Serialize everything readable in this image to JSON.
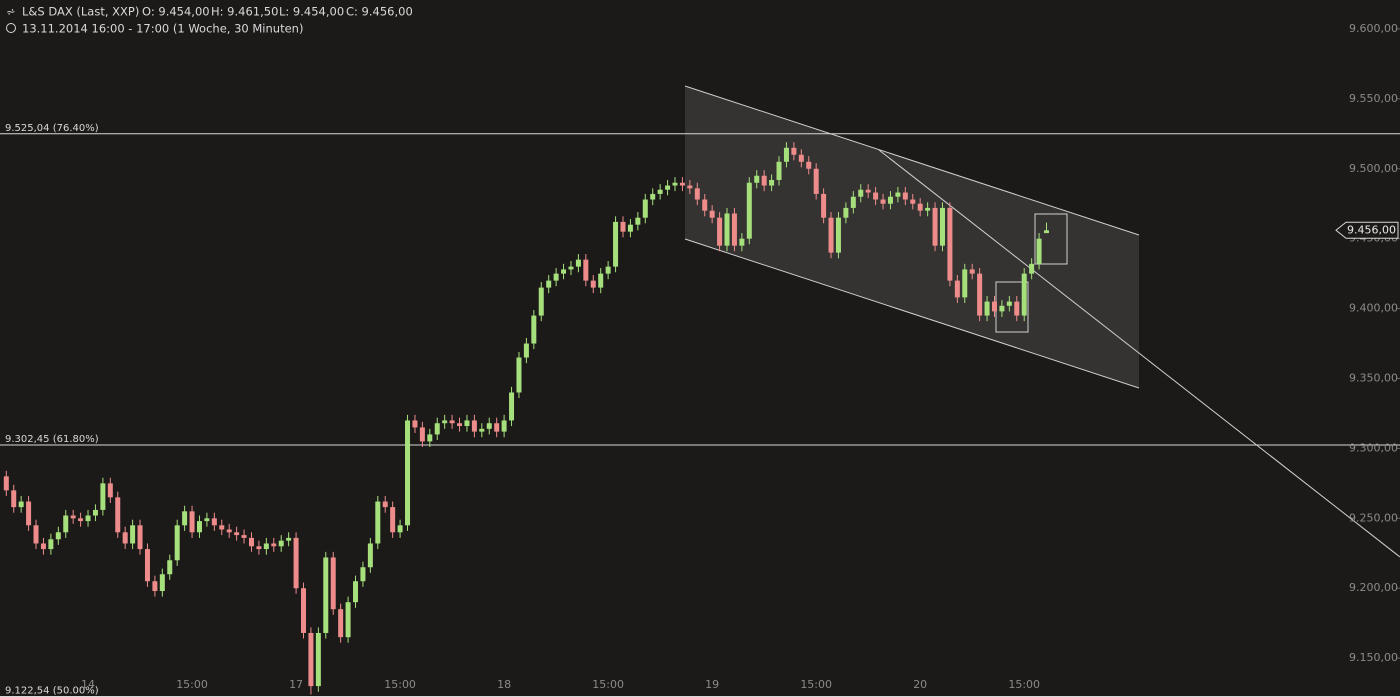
{
  "chart_data": {
    "type": "candlestick",
    "instrument": "L&S DAX (Last, XXP)",
    "ohlc_text": [
      "O: 9.454,00",
      "H: 9.461,50",
      "L: 9.454,00",
      "C: 9.456,00"
    ],
    "period": "13.11.2014 16:00 - 17:00 (1 Woche, 30 Minuten)",
    "up_color": "#a6e07c",
    "down_color": "#ee8c8c",
    "ylim": [
      9122.2,
      9620.7
    ],
    "yticks": [
      {
        "value": 9150,
        "label": "9.150,00"
      },
      {
        "value": 9200,
        "label": "9.200,00"
      },
      {
        "value": 9250,
        "label": "9.250,00"
      },
      {
        "value": 9300,
        "label": "9.300,00"
      },
      {
        "value": 9350,
        "label": "9.350,00"
      },
      {
        "value": 9400,
        "label": "9.400,00"
      },
      {
        "value": 9450,
        "label": "9.450,00"
      },
      {
        "value": 9500,
        "label": "9.500,00"
      },
      {
        "value": 9550,
        "label": "9.550,00"
      },
      {
        "value": 9600,
        "label": "9.600,00"
      }
    ],
    "levels": [
      {
        "value": 9525.04,
        "label": "9.525,04 (76.40%)"
      },
      {
        "value": 9302.45,
        "label": "9.302,45 (61.80%)"
      },
      {
        "value": 9122.54,
        "label": "9.122,54 (50.00%)"
      }
    ],
    "last_price": {
      "value": 9456,
      "label": "9.456,00"
    },
    "categories": [
      null,
      null,
      null,
      null,
      null,
      null,
      null,
      null,
      null,
      null,
      null,
      "14",
      null,
      null,
      null,
      null,
      null,
      null,
      null,
      null,
      null,
      null,
      null,
      null,
      null,
      "15:00",
      null,
      null,
      null,
      null,
      null,
      null,
      null,
      null,
      null,
      null,
      null,
      null,
      null,
      "17",
      null,
      null,
      null,
      null,
      null,
      null,
      null,
      null,
      null,
      null,
      null,
      null,
      null,
      "15:00",
      null,
      null,
      null,
      null,
      null,
      null,
      null,
      null,
      null,
      null,
      null,
      null,
      null,
      "18",
      null,
      null,
      null,
      null,
      null,
      null,
      null,
      null,
      null,
      null,
      null,
      null,
      null,
      "15:00",
      null,
      null,
      null,
      null,
      null,
      null,
      null,
      null,
      null,
      null,
      null,
      null,
      null,
      "19",
      null,
      null,
      null,
      null,
      null,
      null,
      null,
      null,
      null,
      null,
      null,
      null,
      null,
      "15:00",
      null,
      null,
      null,
      null,
      null,
      null,
      null,
      null,
      null,
      null,
      null,
      null,
      null,
      "20",
      null,
      null,
      null,
      null,
      null,
      null,
      null,
      null,
      null,
      null,
      null,
      null,
      null,
      "15:00",
      null,
      null,
      null
    ],
    "open": [
      9280,
      9270,
      9258,
      9262,
      9245,
      9232,
      9228,
      9235,
      9240,
      9252,
      9250,
      9248,
      9252,
      9256,
      9275,
      9265,
      9240,
      9232,
      9245,
      9228,
      9205,
      9198,
      9210,
      9220,
      9245,
      9255,
      9240,
      9248,
      9250,
      9245,
      9242,
      9240,
      9238,
      9236,
      9230,
      9228,
      9232,
      9230,
      9234,
      9236,
      9200,
      9168,
      9130,
      9168,
      9222,
      9185,
      9165,
      9190,
      9205,
      9215,
      9232,
      9262,
      9258,
      9240,
      9245,
      9320,
      9315,
      9305,
      9310,
      9318,
      9320,
      9318,
      9316,
      9320,
      9312,
      9314,
      9318,
      9312,
      9320,
      9340,
      9365,
      9375,
      9395,
      9415,
      9420,
      9425,
      9428,
      9430,
      9435,
      9420,
      9415,
      9425,
      9430,
      9462,
      9455,
      9460,
      9465,
      9478,
      9482,
      9485,
      9488,
      9490,
      9488,
      9486,
      9478,
      9470,
      9465,
      9445,
      9468,
      9445,
      9450,
      9490,
      9495,
      9488,
      9492,
      9505,
      9515,
      9510,
      9505,
      9500,
      9482,
      9465,
      9440,
      9465,
      9472,
      9480,
      9485,
      9483,
      9478,
      9475,
      9480,
      9483,
      9478,
      9475,
      9470,
      9472,
      9445,
      9472,
      9420,
      9408,
      9428,
      9425,
      9395,
      9405,
      9398,
      9402,
      9405,
      9395,
      9425,
      9432,
      9454
    ],
    "high": [
      9284,
      9274,
      9266,
      9266,
      9249,
      9236,
      9239,
      9244,
      9256,
      9256,
      9254,
      9256,
      9260,
      9279,
      9279,
      9269,
      9244,
      9249,
      9249,
      9232,
      9209,
      9214,
      9224,
      9249,
      9259,
      9259,
      9252,
      9254,
      9254,
      9249,
      9246,
      9244,
      9242,
      9240,
      9234,
      9236,
      9236,
      9238,
      9240,
      9240,
      9204,
      9172,
      9172,
      9226,
      9226,
      9189,
      9194,
      9209,
      9219,
      9236,
      9266,
      9266,
      9262,
      9249,
      9324,
      9324,
      9319,
      9314,
      9322,
      9324,
      9324,
      9322,
      9324,
      9324,
      9318,
      9322,
      9322,
      9324,
      9344,
      9369,
      9379,
      9399,
      9419,
      9424,
      9429,
      9432,
      9434,
      9439,
      9439,
      9424,
      9429,
      9434,
      9466,
      9466,
      9464,
      9469,
      9482,
      9486,
      9489,
      9492,
      9494,
      9494,
      9492,
      9490,
      9482,
      9474,
      9469,
      9472,
      9472,
      9454,
      9494,
      9499,
      9499,
      9496,
      9509,
      9519,
      9519,
      9514,
      9509,
      9504,
      9486,
      9469,
      9469,
      9476,
      9484,
      9489,
      9489,
      9487,
      9482,
      9484,
      9487,
      9487,
      9482,
      9479,
      9476,
      9476,
      9476,
      9476,
      9424,
      9432,
      9432,
      9429,
      9409,
      9409,
      9406,
      9409,
      9409,
      9429,
      9436,
      9454,
      9461.5
    ],
    "low": [
      9266,
      9254,
      9254,
      9241,
      9228,
      9224,
      9224,
      9231,
      9236,
      9246,
      9244,
      9244,
      9248,
      9252,
      9261,
      9236,
      9228,
      9228,
      9224,
      9201,
      9194,
      9194,
      9206,
      9216,
      9241,
      9236,
      9236,
      9244,
      9241,
      9238,
      9236,
      9234,
      9232,
      9226,
      9224,
      9224,
      9226,
      9226,
      9230,
      9196,
      9164,
      9124,
      9126,
      9164,
      9181,
      9161,
      9161,
      9186,
      9201,
      9211,
      9228,
      9254,
      9236,
      9236,
      9241,
      9311,
      9301,
      9301,
      9306,
      9314,
      9314,
      9312,
      9312,
      9308,
      9308,
      9310,
      9308,
      9308,
      9316,
      9336,
      9361,
      9371,
      9391,
      9411,
      9416,
      9421,
      9424,
      9426,
      9416,
      9411,
      9411,
      9421,
      9426,
      9451,
      9451,
      9456,
      9461,
      9474,
      9478,
      9481,
      9484,
      9484,
      9482,
      9474,
      9466,
      9461,
      9441,
      9441,
      9441,
      9441,
      9446,
      9486,
      9484,
      9484,
      9488,
      9501,
      9506,
      9501,
      9496,
      9478,
      9461,
      9436,
      9436,
      9461,
      9468,
      9476,
      9479,
      9474,
      9471,
      9471,
      9476,
      9474,
      9471,
      9466,
      9466,
      9441,
      9441,
      9416,
      9404,
      9404,
      9421,
      9391,
      9391,
      9394,
      9394,
      9398,
      9391,
      9391,
      9421,
      9428,
      9454
    ],
    "close": [
      9270,
      9258,
      9262,
      9245,
      9232,
      9228,
      9235,
      9240,
      9252,
      9250,
      9248,
      9252,
      9256,
      9275,
      9265,
      9240,
      9232,
      9245,
      9228,
      9205,
      9198,
      9210,
      9220,
      9245,
      9255,
      9240,
      9248,
      9250,
      9245,
      9242,
      9240,
      9238,
      9236,
      9230,
      9228,
      9232,
      9230,
      9234,
      9236,
      9200,
      9168,
      9130,
      9168,
      9222,
      9185,
      9165,
      9190,
      9205,
      9215,
      9232,
      9262,
      9258,
      9240,
      9245,
      9320,
      9315,
      9305,
      9310,
      9318,
      9320,
      9318,
      9316,
      9320,
      9312,
      9314,
      9318,
      9312,
      9320,
      9340,
      9365,
      9375,
      9395,
      9415,
      9420,
      9425,
      9428,
      9430,
      9435,
      9420,
      9415,
      9425,
      9430,
      9462,
      9455,
      9460,
      9465,
      9478,
      9482,
      9485,
      9488,
      9490,
      9488,
      9486,
      9478,
      9470,
      9465,
      9445,
      9468,
      9445,
      9450,
      9490,
      9495,
      9488,
      9492,
      9505,
      9515,
      9510,
      9505,
      9500,
      9482,
      9465,
      9440,
      9465,
      9472,
      9480,
      9485,
      9483,
      9478,
      9475,
      9480,
      9483,
      9478,
      9475,
      9470,
      9472,
      9445,
      9472,
      9420,
      9408,
      9428,
      9425,
      9395,
      9405,
      9398,
      9402,
      9405,
      9395,
      9425,
      9432,
      9450,
      9456
    ]
  }
}
